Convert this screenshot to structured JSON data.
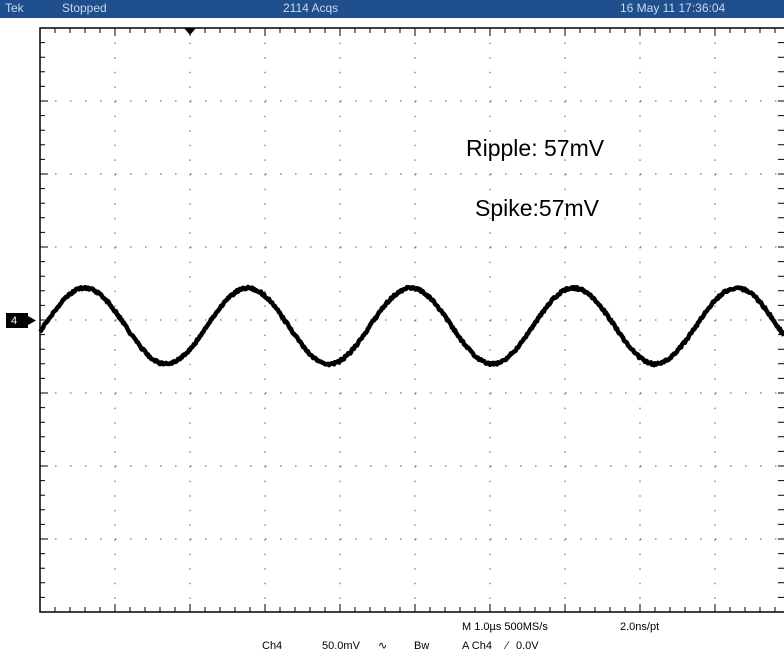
{
  "header": {
    "brand": "Tek",
    "status": "Stopped",
    "acquisitions": "2114 Acqs",
    "timestamp": "16 May 11 17:36:04"
  },
  "channel_marker": "4",
  "annotations": [
    "Ripple: 57mV",
    "Spike:57mV"
  ],
  "footer": {
    "timebase": "M 1.0µs 500MS/s",
    "resolution": "2.0ns/pt",
    "channel": "Ch4",
    "volts_per_div": "50.0mV",
    "bandwidth": "Bw",
    "trigger_source": "A Ch4",
    "trigger_level": "0.0V"
  }
}
